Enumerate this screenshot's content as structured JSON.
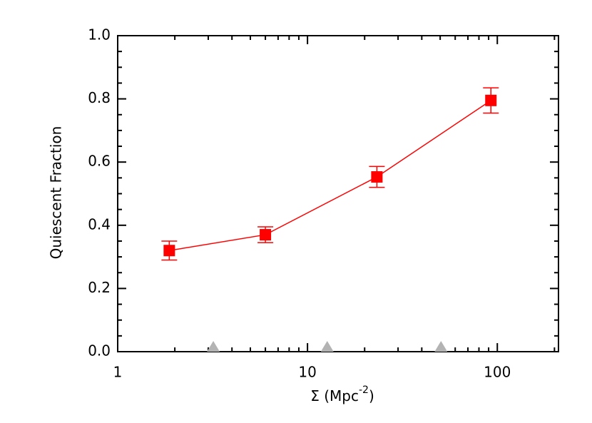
{
  "chart_data": {
    "type": "line",
    "xlabel": {
      "text": "Σ (Mpc",
      "sup": "-2",
      "end": ")"
    },
    "ylabel": "Quiescent Fraction",
    "xlog": true,
    "xlim": [
      1,
      210
    ],
    "ylim": [
      0,
      1
    ],
    "xticks": [
      1,
      10,
      100
    ],
    "xminorticks": [
      2,
      3,
      4,
      5,
      6,
      7,
      8,
      9,
      20,
      30,
      40,
      50,
      60,
      70,
      80,
      90,
      200
    ],
    "yticks": [
      {
        "value": 0,
        "label": "0.0"
      },
      0.2,
      0.4,
      0.6,
      0.8,
      {
        "value": 1,
        "label": "1.0"
      }
    ],
    "yminorticks": [
      0.05,
      0.1,
      0.15,
      0.25,
      0.3,
      0.35,
      0.45,
      0.5,
      0.55,
      0.65,
      0.7,
      0.75,
      0.85,
      0.9,
      0.95
    ],
    "series": [
      {
        "x": [
          1.87,
          6.0,
          23.2,
          92.5
        ],
        "values": [
          0.32,
          0.37,
          0.553,
          0.795
        ],
        "errors": [
          0.03,
          0.025,
          0.033,
          0.04
        ],
        "color": "#ff0000"
      }
    ],
    "triangles": {
      "x": [
        3.19,
        12.7,
        50.5
      ],
      "values": [
        0,
        0,
        0
      ],
      "color": "#b3b3b3"
    }
  }
}
